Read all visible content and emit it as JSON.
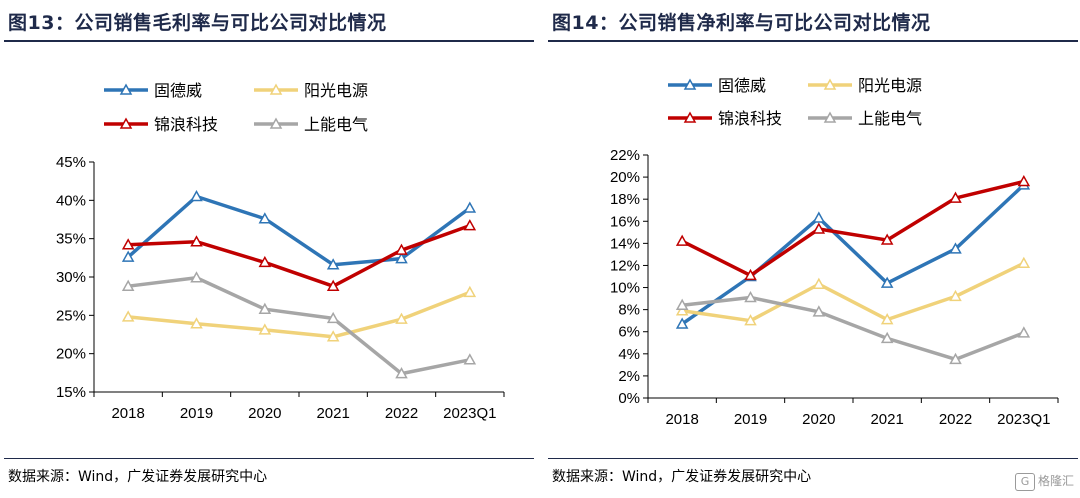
{
  "chart_data": [
    {
      "type": "line",
      "title": "图13：公司销售毛利率与可比公司对比情况",
      "source": "数据来源：Wind，广发证券发展研究中心",
      "categories": [
        "2018",
        "2019",
        "2020",
        "2021",
        "2022",
        "2023Q1"
      ],
      "y_ticks": [
        "15%",
        "20%",
        "25%",
        "30%",
        "35%",
        "40%",
        "45%"
      ],
      "ylim": [
        15,
        45
      ],
      "legend_position": "top",
      "series": [
        {
          "name": "固德威",
          "color": "#2e75b6",
          "values": [
            32.6,
            40.5,
            37.6,
            31.6,
            32.4,
            39.0
          ]
        },
        {
          "name": "阳光电源",
          "color": "#f0d27a",
          "values": [
            24.8,
            23.9,
            23.1,
            22.2,
            24.5,
            28.0
          ]
        },
        {
          "name": "锦浪科技",
          "color": "#c00000",
          "values": [
            34.2,
            34.6,
            31.9,
            28.8,
            33.5,
            36.7
          ]
        },
        {
          "name": "上能电气",
          "color": "#a6a6a6",
          "values": [
            28.8,
            29.9,
            25.8,
            24.6,
            17.4,
            19.2
          ]
        }
      ]
    },
    {
      "type": "line",
      "title": "图14：公司销售净利率与可比公司对比情况",
      "source": "数据来源：Wind，广发证券发展研究中心",
      "categories": [
        "2018",
        "2019",
        "2020",
        "2021",
        "2022",
        "2023Q1"
      ],
      "y_ticks": [
        "0%",
        "2%",
        "4%",
        "6%",
        "8%",
        "10%",
        "12%",
        "14%",
        "16%",
        "18%",
        "20%",
        "22%"
      ],
      "ylim": [
        0,
        22
      ],
      "legend_position": "top",
      "series": [
        {
          "name": "固德威",
          "color": "#2e75b6",
          "values": [
            6.7,
            11.0,
            16.3,
            10.4,
            13.5,
            19.3
          ]
        },
        {
          "name": "阳光电源",
          "color": "#f0d27a",
          "values": [
            7.9,
            7.0,
            10.3,
            7.1,
            9.2,
            12.2
          ]
        },
        {
          "name": "锦浪科技",
          "color": "#c00000",
          "values": [
            14.2,
            11.1,
            15.3,
            14.3,
            18.1,
            19.6
          ]
        },
        {
          "name": "上能电气",
          "color": "#a6a6a6",
          "values": [
            8.4,
            9.1,
            7.8,
            5.4,
            3.5,
            5.9
          ]
        }
      ]
    }
  ],
  "watermark": {
    "icon": "格隆汇-logo",
    "text": "格隆汇"
  }
}
